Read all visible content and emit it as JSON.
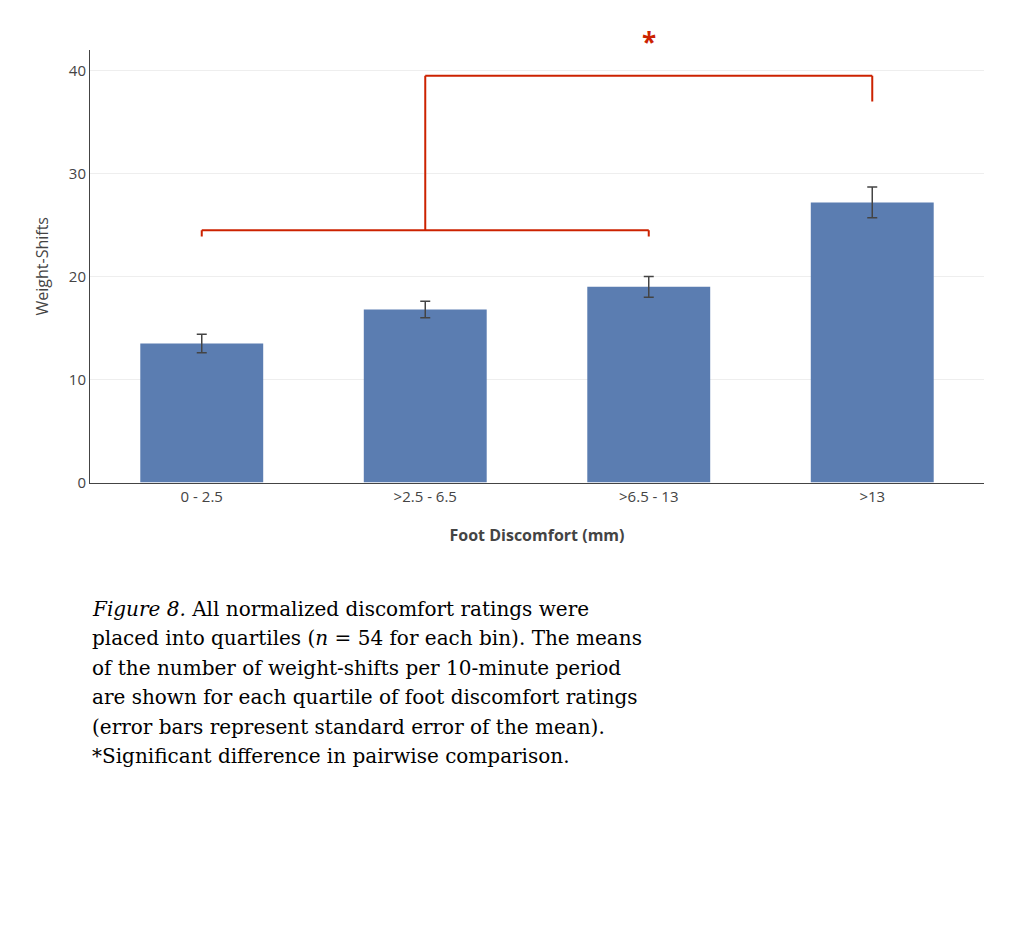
{
  "chart_data": {
    "type": "bar",
    "categories": [
      "0 - 2.5",
      ">2.5 - 6.5",
      ">6.5 - 13",
      ">13"
    ],
    "values": [
      13.5,
      16.8,
      19.0,
      27.2
    ],
    "errors": [
      0.9,
      0.8,
      1.0,
      1.5
    ],
    "color": "#5B7DB1",
    "xlabel": "Foot Discomfort (mm)",
    "ylabel": "Weight-Shifts",
    "ylim": [
      0,
      42
    ],
    "yticks": [
      0,
      10,
      20,
      30,
      40
    ],
    "grid": true,
    "brackets": [
      {
        "from": "0 - 2.5",
        "to": ">6.5 - 13",
        "y": 24.5,
        "ends": [
          23.9,
          23.9
        ],
        "color": "#CC2200"
      },
      {
        "from": ">2.5 - 6.5",
        "to": ">13",
        "y": 39.5,
        "ends": [
          24.5,
          37.0
        ],
        "color": "#CC2200"
      }
    ],
    "annotations": [
      {
        "text": "*",
        "x": ">6.5 - 13",
        "y": 40.8,
        "color": "#CC2200"
      }
    ],
    "caption": [
      [
        {
          "text": "Figure 8.",
          "italic": true
        },
        {
          "text": " All normalized discomfort ratings were"
        }
      ],
      [
        {
          "text": "placed into quartiles ("
        },
        {
          "text": "n",
          "italic": true
        },
        {
          "text": " = 54 for each bin). The means"
        }
      ],
      [
        {
          "text": "of the number of weight-shifts per 10-minute period"
        }
      ],
      [
        {
          "text": "are shown for each quartile of foot discomfort ratings"
        }
      ],
      [
        {
          "text": "(error bars represent standard error of the mean)."
        }
      ],
      [
        {
          "text": "*Significant difference in pairwise comparison."
        }
      ]
    ]
  }
}
